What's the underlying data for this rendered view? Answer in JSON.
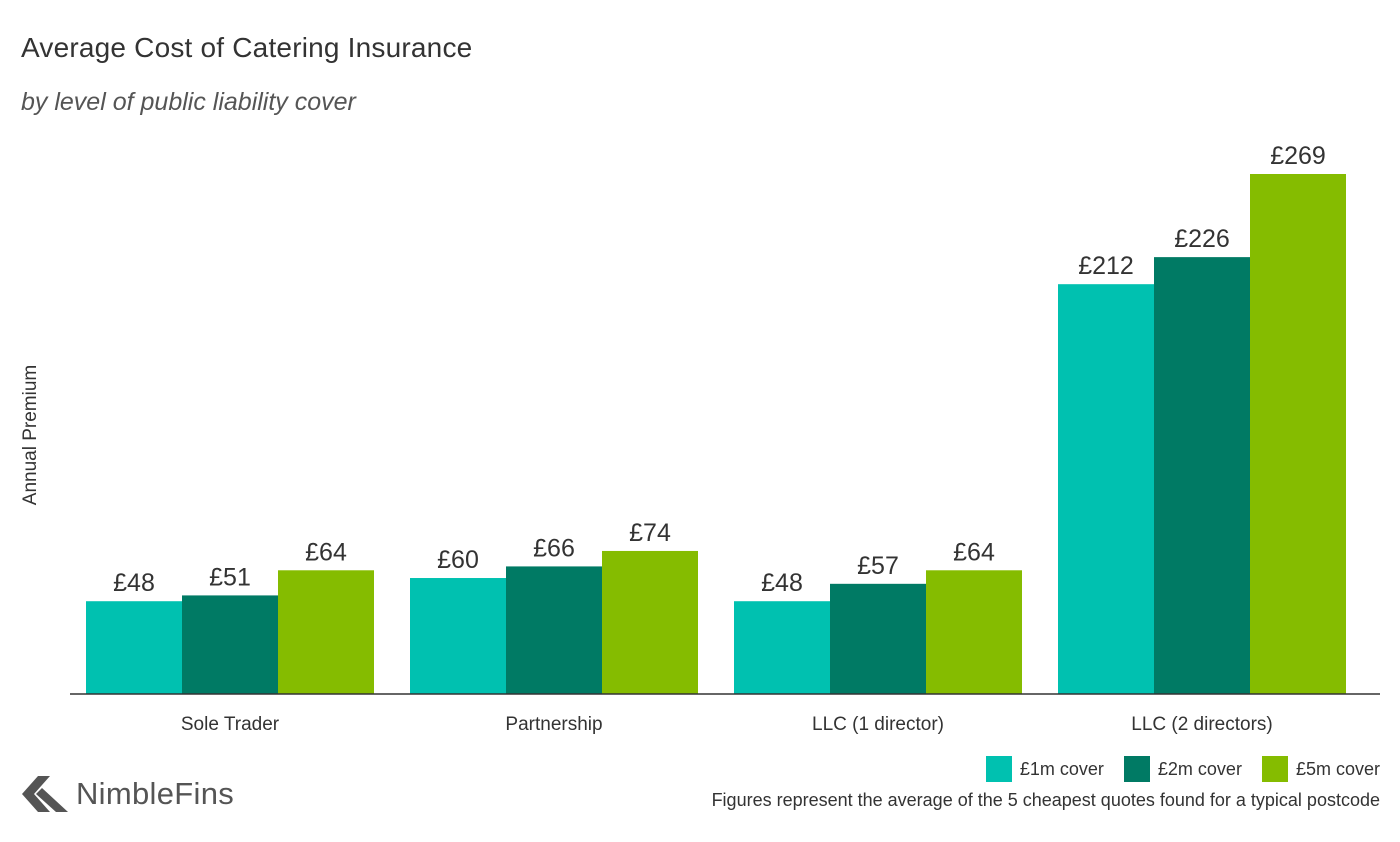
{
  "title": "Average Cost of Catering Insurance",
  "subtitle": "by level of public liability cover",
  "brand": {
    "name": "NimbleFins",
    "logo_icon": "chevron-arrow-icon",
    "logo_color": "#555555"
  },
  "footnote": "Figures represent the average of the 5 cheapest quotes found for a typical postcode",
  "chart_data": {
    "type": "bar",
    "title": "Average Cost of Catering Insurance",
    "subtitle": "by level of public liability cover",
    "ylabel": "Annual Premium",
    "xlabel": "",
    "ylim": [
      0,
      280
    ],
    "grid": false,
    "legend": "bottom-right",
    "categories": [
      "Sole Trader",
      "Partnership",
      "LLC (1 director)",
      "LLC (2 directors)"
    ],
    "series": [
      {
        "name": "£1m cover",
        "color": "#00C1B0",
        "values": [
          48,
          60,
          48,
          212
        ],
        "labels": [
          "£48",
          "£60",
          "£48",
          "£212"
        ]
      },
      {
        "name": "£2m cover",
        "color": "#007A64",
        "values": [
          51,
          66,
          57,
          226
        ],
        "labels": [
          "£51",
          "£66",
          "£57",
          "£226"
        ]
      },
      {
        "name": "£5m cover",
        "color": "#85BC00",
        "values": [
          64,
          74,
          64,
          269
        ],
        "labels": [
          "£64",
          "£74",
          "£64",
          "£269"
        ]
      }
    ]
  }
}
